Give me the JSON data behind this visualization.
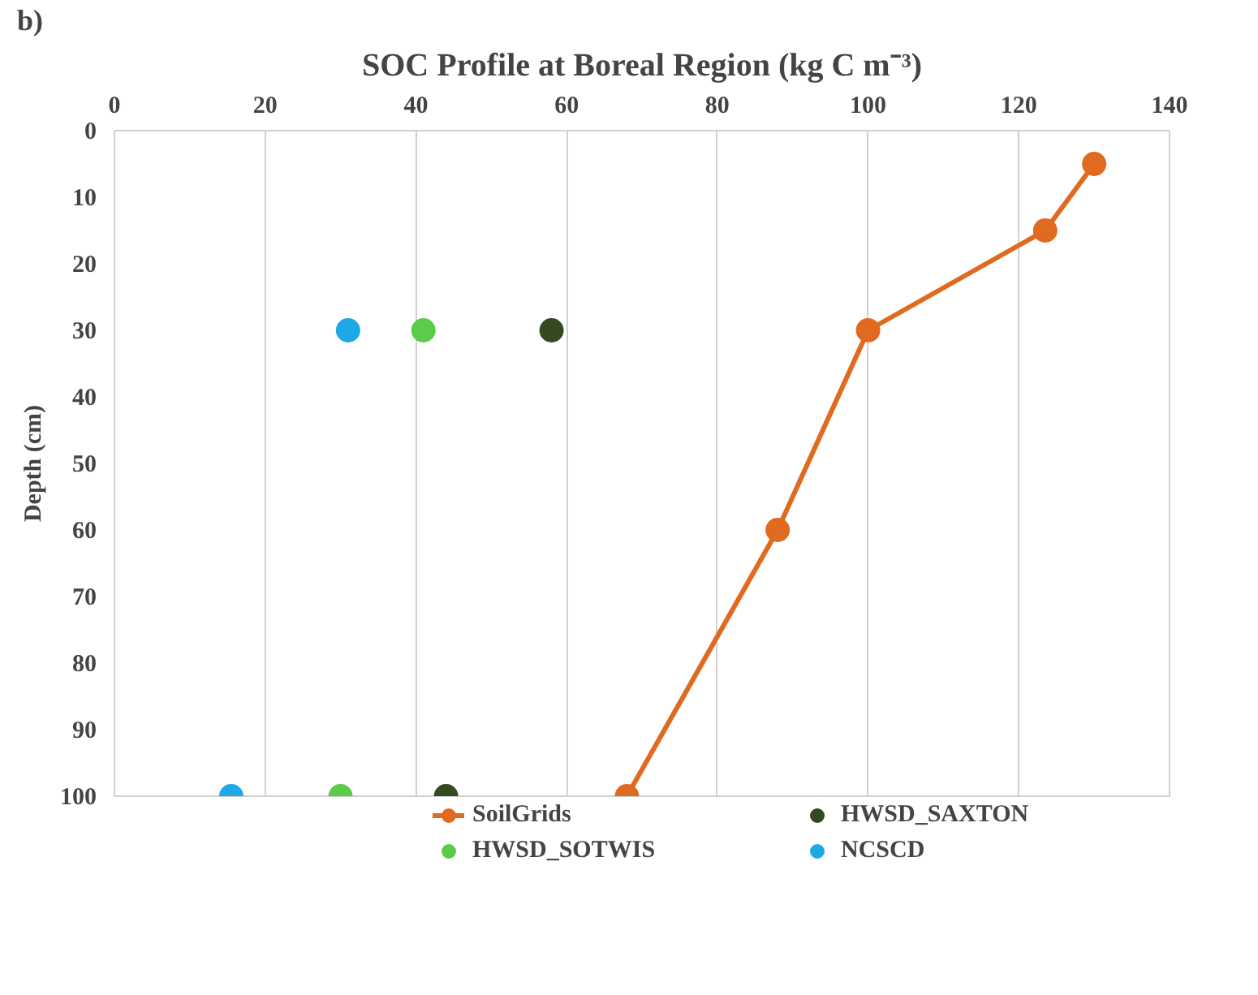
{
  "chart_data": {
    "type": "scatter",
    "title": "SOC Profile at Boreal Region (kg C m⁻³)",
    "ylabel": "Depth (cm)",
    "annotations": [
      "b)"
    ],
    "series": [
      {
        "name": "SoilGrids",
        "type": "line",
        "color": "#e06a1f",
        "x": [
          130,
          123.5,
          100,
          88,
          68
        ],
        "values": [
          5,
          15,
          30,
          60,
          100
        ]
      },
      {
        "name": "HWSD_SOTWIS",
        "color": "#5ccb4a",
        "x": [
          41,
          30
        ],
        "values": [
          30,
          100
        ]
      },
      {
        "name": "HWSD_SAXTON",
        "color": "#34491f",
        "x": [
          58,
          44
        ],
        "values": [
          30,
          100
        ]
      },
      {
        "name": "NCSCD",
        "color": "#1ea8e6",
        "x": [
          31,
          15.5
        ],
        "values": [
          30,
          100
        ]
      }
    ],
    "xlim": [
      0,
      140
    ],
    "xticks": [
      0,
      20,
      40,
      60,
      80,
      100,
      120,
      140
    ],
    "ylim": [
      100,
      0
    ],
    "yticks": [
      0,
      10,
      20,
      30,
      40,
      50,
      60,
      70,
      80,
      90,
      100
    ],
    "grid": "x",
    "legend": "bottom",
    "marker": "circle",
    "line_style": "solid"
  }
}
